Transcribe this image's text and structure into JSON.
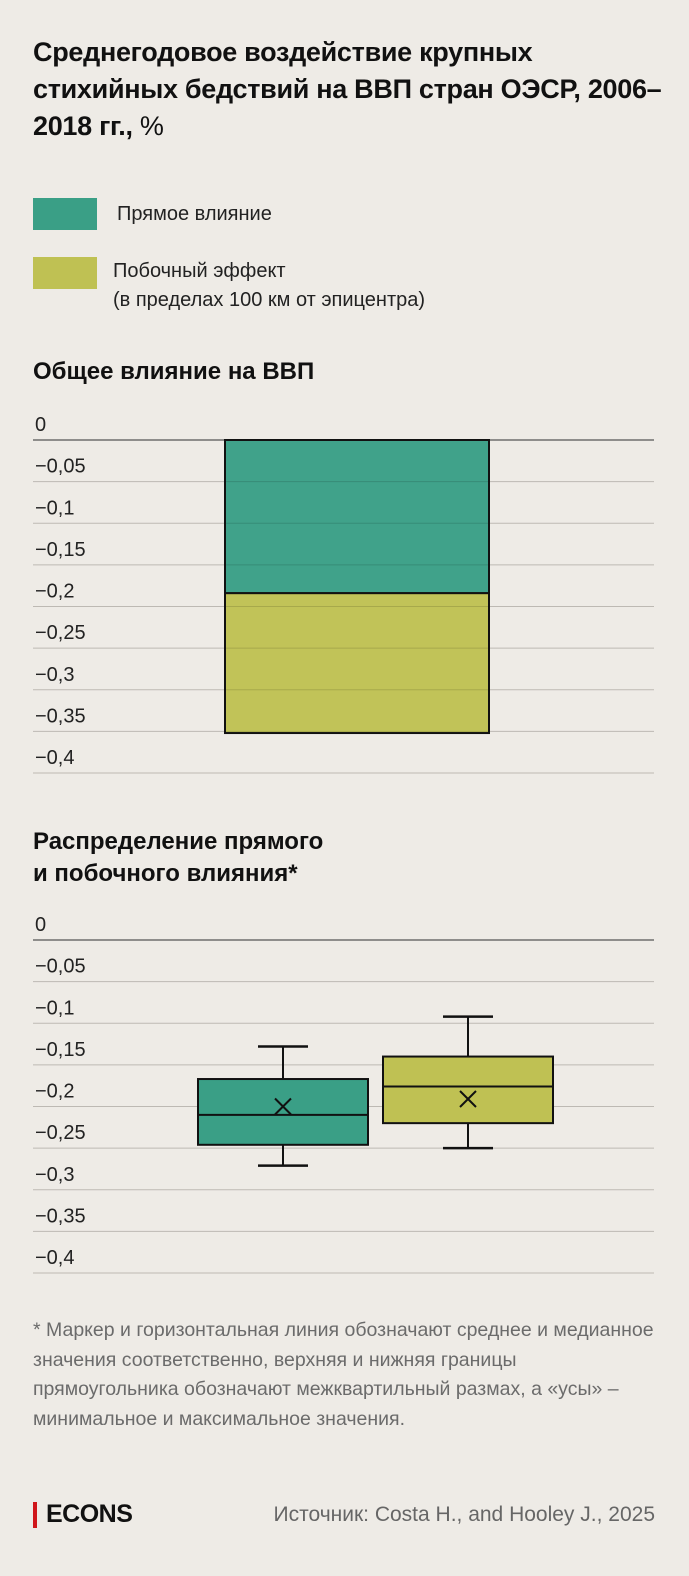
{
  "title": {
    "bold": "Среднегодовое воздействие крупных стихийных бедствий на ВВП стран ОЭСР, 2006–2018 гг.,",
    "unit": " %"
  },
  "colors": {
    "direct": "#3a9f86",
    "spillover": "#bfc153",
    "background": "#eeebe6",
    "brand": "#d0161b"
  },
  "legend": [
    {
      "label": "Прямое влияние",
      "color": "#3a9f86"
    },
    {
      "label": "Побочный эффект\n(в пределах 100 км от эпицентра)",
      "color": "#bfc153"
    }
  ],
  "chart_data": [
    {
      "type": "bar",
      "stacked": true,
      "title": "Общее влияние на ВВП",
      "ylim": [
        -0.4,
        0
      ],
      "yticks": [
        "0",
        "−0,05",
        "−0,1",
        "−0,15",
        "−0,2",
        "−0,25",
        "−0,3",
        "−0,35",
        "−0,4"
      ],
      "series": [
        {
          "name": "Прямое влияние",
          "values": [
            -0.184
          ]
        },
        {
          "name": "Побочный эффект",
          "values": [
            -0.168
          ]
        }
      ],
      "grid": true
    },
    {
      "type": "box",
      "title": "Распределение прямого\nи побочного влияния*",
      "ylim": [
        -0.4,
        0
      ],
      "yticks": [
        "0",
        "−0,05",
        "−0,1",
        "−0,15",
        "−0,2",
        "−0,25",
        "−0,3",
        "−0,35",
        "−0,4"
      ],
      "series": [
        {
          "name": "Прямое влияние",
          "min": -0.271,
          "q1": -0.246,
          "median": -0.21,
          "mean": -0.2,
          "q3": -0.167,
          "max": -0.128
        },
        {
          "name": "Побочный эффект",
          "min": -0.25,
          "q1": -0.22,
          "median": -0.176,
          "mean": -0.191,
          "q3": -0.14,
          "max": -0.092
        }
      ],
      "grid": true
    }
  ],
  "note": "* Маркер и горизонтальная линия обозначают среднее и медианное значения соответственно, верхняя и нижняя границы прямоугольника обозначают межквартильный размах, а «усы» – минимальное и максимальное значения.",
  "footer": {
    "logo": "ECONS",
    "source": "Источник: Costa H., and Hooley J., 2025"
  }
}
